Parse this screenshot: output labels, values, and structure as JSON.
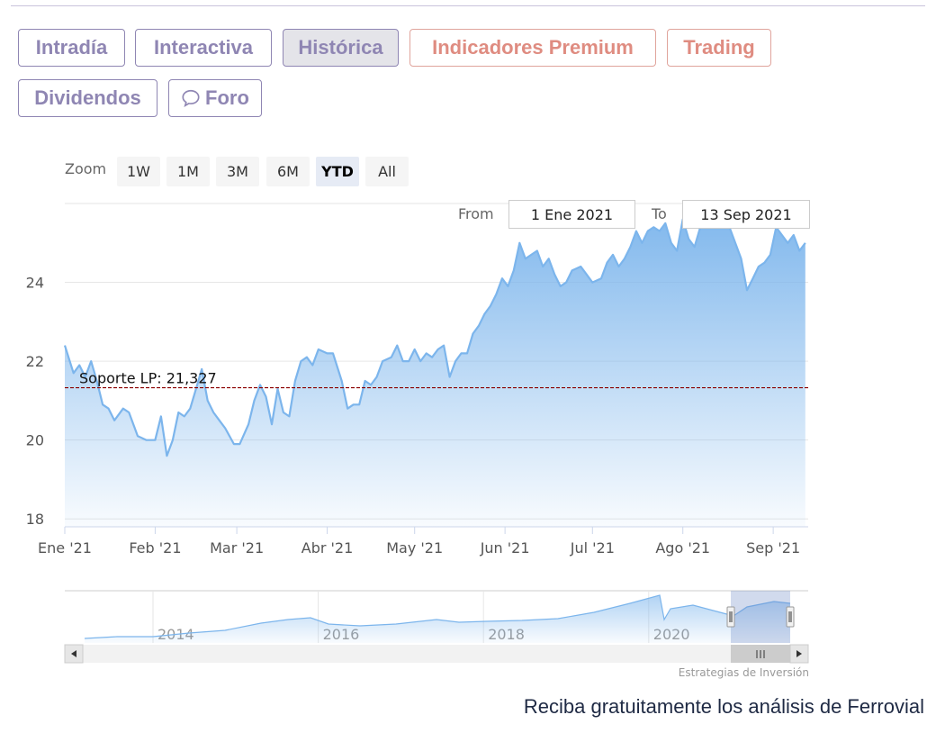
{
  "tabs": [
    {
      "label": "Intradía",
      "style": "normal"
    },
    {
      "label": "Interactiva",
      "style": "normal"
    },
    {
      "label": "Histórica",
      "style": "active"
    },
    {
      "label": "Indicadores Premium",
      "style": "premium"
    },
    {
      "label": "Trading",
      "style": "premium"
    },
    {
      "label": "Dividendos",
      "style": "normal"
    },
    {
      "label": "Foro",
      "style": "normal",
      "icon": "speech-bubble-icon"
    }
  ],
  "zoom": {
    "label": "Zoom",
    "buttons": [
      "1W",
      "1M",
      "3M",
      "6M",
      "YTD",
      "All"
    ],
    "selected": "YTD"
  },
  "range": {
    "from_label": "From",
    "from_value": "1 Ene 2021",
    "to_label": "To",
    "to_value": "13 Sep 2021"
  },
  "chart_data": {
    "type": "area",
    "title": "",
    "xlabel": "",
    "ylabel": "",
    "x_ticks": [
      "Ene '21",
      "Feb '21",
      "Mar '21",
      "Abr '21",
      "May '21",
      "Jun '21",
      "Jul '21",
      "Ago '21",
      "Sep '21"
    ],
    "y_ticks": [
      18,
      20,
      22,
      24
    ],
    "ylim": [
      17.8,
      26.0
    ],
    "grid": true,
    "series": [
      {
        "name": "",
        "color": "#7cb5ec",
        "points": [
          [
            "2021-01-01",
            22.4
          ],
          [
            "2021-01-04",
            21.7
          ],
          [
            "2021-01-06",
            21.9
          ],
          [
            "2021-01-08",
            21.6
          ],
          [
            "2021-01-10",
            22.0
          ],
          [
            "2021-01-12",
            21.5
          ],
          [
            "2021-01-14",
            20.9
          ],
          [
            "2021-01-16",
            20.8
          ],
          [
            "2021-01-18",
            20.5
          ],
          [
            "2021-01-21",
            20.8
          ],
          [
            "2021-01-23",
            20.7
          ],
          [
            "2021-01-26",
            20.1
          ],
          [
            "2021-01-29",
            20.0
          ],
          [
            "2021-02-01",
            20.0
          ],
          [
            "2021-02-03",
            20.6
          ],
          [
            "2021-02-05",
            19.6
          ],
          [
            "2021-02-07",
            20.0
          ],
          [
            "2021-02-09",
            20.7
          ],
          [
            "2021-02-11",
            20.6
          ],
          [
            "2021-02-13",
            20.8
          ],
          [
            "2021-02-15",
            21.3
          ],
          [
            "2021-02-17",
            21.8
          ],
          [
            "2021-02-19",
            21.0
          ],
          [
            "2021-02-21",
            20.7
          ],
          [
            "2021-02-23",
            20.5
          ],
          [
            "2021-02-25",
            20.3
          ],
          [
            "2021-02-28",
            19.9
          ],
          [
            "2021-03-02",
            19.9
          ],
          [
            "2021-03-05",
            20.4
          ],
          [
            "2021-03-07",
            21.0
          ],
          [
            "2021-03-09",
            21.4
          ],
          [
            "2021-03-11",
            21.1
          ],
          [
            "2021-03-13",
            20.4
          ],
          [
            "2021-03-15",
            21.3
          ],
          [
            "2021-03-17",
            20.7
          ],
          [
            "2021-03-19",
            20.6
          ],
          [
            "2021-03-21",
            21.5
          ],
          [
            "2021-03-23",
            22.0
          ],
          [
            "2021-03-25",
            22.1
          ],
          [
            "2021-03-27",
            21.9
          ],
          [
            "2021-03-29",
            22.3
          ],
          [
            "2021-04-01",
            22.2
          ],
          [
            "2021-04-03",
            22.2
          ],
          [
            "2021-04-06",
            21.5
          ],
          [
            "2021-04-08",
            20.8
          ],
          [
            "2021-04-10",
            20.9
          ],
          [
            "2021-04-12",
            20.9
          ],
          [
            "2021-04-14",
            21.5
          ],
          [
            "2021-04-16",
            21.4
          ],
          [
            "2021-04-18",
            21.6
          ],
          [
            "2021-04-20",
            22.0
          ],
          [
            "2021-04-23",
            22.1
          ],
          [
            "2021-04-25",
            22.4
          ],
          [
            "2021-04-27",
            22.0
          ],
          [
            "2021-04-29",
            22.0
          ],
          [
            "2021-05-01",
            22.3
          ],
          [
            "2021-05-03",
            22.0
          ],
          [
            "2021-05-05",
            22.2
          ],
          [
            "2021-05-07",
            22.1
          ],
          [
            "2021-05-09",
            22.3
          ],
          [
            "2021-05-11",
            22.4
          ],
          [
            "2021-05-13",
            21.6
          ],
          [
            "2021-05-15",
            22.0
          ],
          [
            "2021-05-17",
            22.2
          ],
          [
            "2021-05-19",
            22.2
          ],
          [
            "2021-05-21",
            22.7
          ],
          [
            "2021-05-23",
            22.9
          ],
          [
            "2021-05-25",
            23.2
          ],
          [
            "2021-05-27",
            23.4
          ],
          [
            "2021-05-29",
            23.7
          ],
          [
            "2021-05-31",
            24.1
          ],
          [
            "2021-06-02",
            23.9
          ],
          [
            "2021-06-04",
            24.3
          ],
          [
            "2021-06-06",
            25.0
          ],
          [
            "2021-06-08",
            24.6
          ],
          [
            "2021-06-10",
            24.7
          ],
          [
            "2021-06-12",
            24.8
          ],
          [
            "2021-06-14",
            24.4
          ],
          [
            "2021-06-16",
            24.6
          ],
          [
            "2021-06-18",
            24.2
          ],
          [
            "2021-06-20",
            23.9
          ],
          [
            "2021-06-22",
            24.0
          ],
          [
            "2021-06-24",
            24.3
          ],
          [
            "2021-06-27",
            24.4
          ],
          [
            "2021-06-29",
            24.2
          ],
          [
            "2021-07-01",
            24.0
          ],
          [
            "2021-07-04",
            24.1
          ],
          [
            "2021-07-06",
            24.5
          ],
          [
            "2021-07-08",
            24.7
          ],
          [
            "2021-07-10",
            24.4
          ],
          [
            "2021-07-12",
            24.6
          ],
          [
            "2021-07-14",
            24.9
          ],
          [
            "2021-07-16",
            25.3
          ],
          [
            "2021-07-18",
            25.0
          ],
          [
            "2021-07-20",
            25.3
          ],
          [
            "2021-07-22",
            25.4
          ],
          [
            "2021-07-24",
            25.3
          ],
          [
            "2021-07-26",
            25.5
          ],
          [
            "2021-07-28",
            25.0
          ],
          [
            "2021-07-30",
            24.8
          ],
          [
            "2021-08-01",
            25.6
          ],
          [
            "2021-08-03",
            25.1
          ],
          [
            "2021-08-05",
            24.9
          ],
          [
            "2021-08-07",
            25.4
          ],
          [
            "2021-08-09",
            25.6
          ],
          [
            "2021-08-11",
            25.5
          ],
          [
            "2021-08-13",
            25.6
          ],
          [
            "2021-08-15",
            25.5
          ],
          [
            "2021-08-17",
            25.4
          ],
          [
            "2021-08-19",
            25.0
          ],
          [
            "2021-08-21",
            24.6
          ],
          [
            "2021-08-23",
            23.8
          ],
          [
            "2021-08-25",
            24.1
          ],
          [
            "2021-08-27",
            24.4
          ],
          [
            "2021-08-29",
            24.5
          ],
          [
            "2021-08-31",
            24.7
          ],
          [
            "2021-09-02",
            25.4
          ],
          [
            "2021-09-04",
            25.2
          ],
          [
            "2021-09-06",
            25.0
          ],
          [
            "2021-09-08",
            25.2
          ],
          [
            "2021-09-10",
            24.8
          ],
          [
            "2021-09-12",
            25.0
          ]
        ]
      }
    ],
    "plot_lines": [
      {
        "label": "Soporte LP: 21,327",
        "value": 21.327,
        "color": "#8b0000",
        "style": "dashed"
      }
    ],
    "navigator": {
      "x_ticks": [
        "2014",
        "2016",
        "2018",
        "2020"
      ],
      "selection": "2021"
    },
    "credit": "Estrategias de Inversión"
  },
  "footer": {
    "cta": "Reciba gratuitamente los análisis de Ferrovial"
  }
}
